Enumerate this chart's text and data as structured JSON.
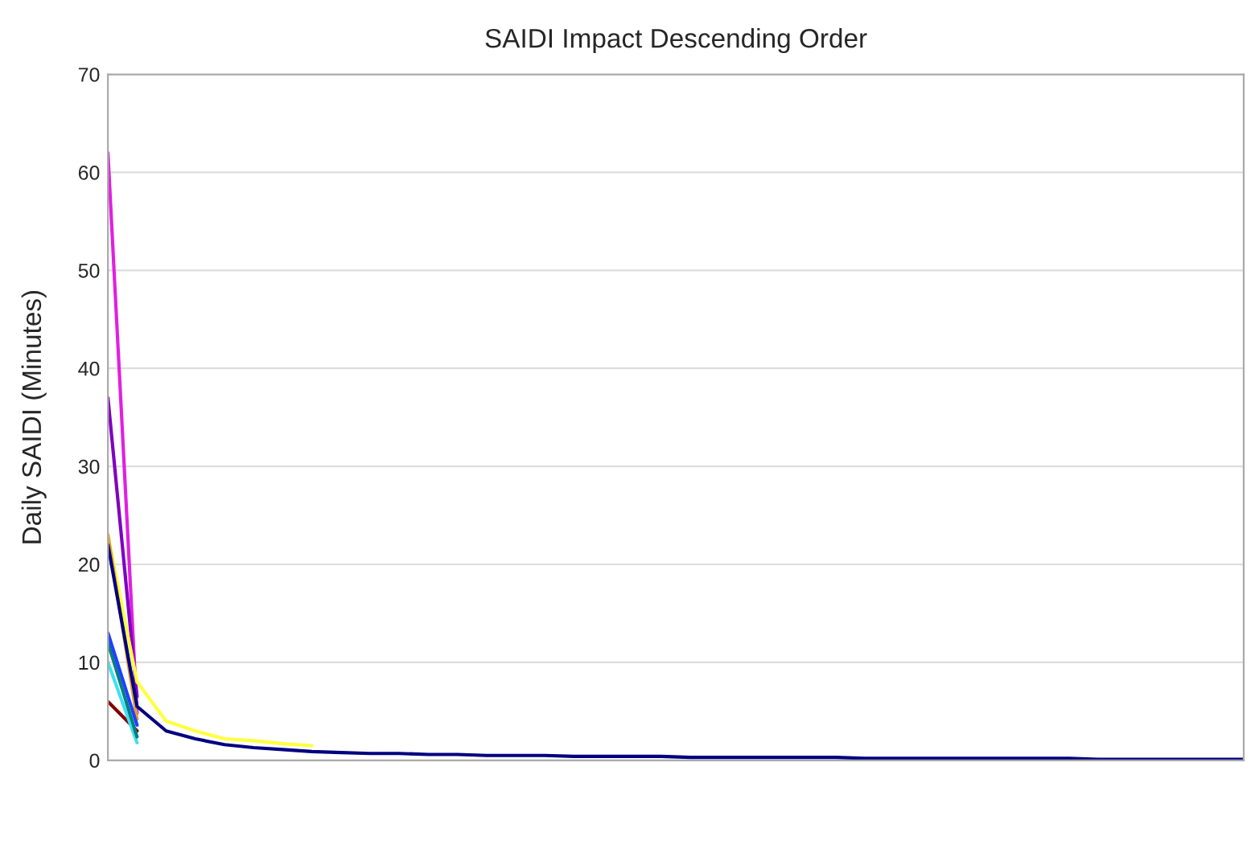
{
  "chart_data": {
    "type": "line",
    "title": "SAIDI Impact Descending Order",
    "ylabel": "Daily SAIDI (Minutes)",
    "ylim": [
      0,
      70
    ],
    "yticks": [
      0,
      10,
      20,
      30,
      40,
      50,
      60,
      70
    ],
    "tick_labels": "y",
    "grid": "y",
    "categories": [
      null,
      null,
      null,
      null,
      null,
      null,
      null,
      null,
      null,
      null,
      null,
      null,
      null,
      null,
      null,
      null,
      null,
      null,
      null,
      null,
      null,
      null,
      null,
      null,
      null,
      null,
      null,
      null,
      null,
      null,
      null,
      null,
      null,
      null,
      null,
      null,
      null,
      null,
      null,
      null
    ],
    "series": [
      {
        "color": "#e020e0",
        "values": [
          62,
          4.8,
          null,
          null,
          null,
          null,
          null,
          null,
          null,
          null,
          null,
          null,
          null,
          null,
          null,
          null,
          null,
          null,
          null,
          null,
          null,
          null,
          null,
          null,
          null,
          null,
          null,
          null,
          null,
          null,
          null,
          null,
          null,
          null,
          null,
          null,
          null,
          null,
          null,
          null
        ]
      },
      {
        "color": "#8000c0",
        "values": [
          37,
          6.5,
          null,
          null,
          null,
          null,
          null,
          null,
          null,
          null,
          null,
          null,
          null,
          null,
          null,
          null,
          null,
          null,
          null,
          null,
          null,
          null,
          null,
          null,
          null,
          null,
          null,
          null,
          null,
          null,
          null,
          null,
          null,
          null,
          null,
          null,
          null,
          null,
          null,
          null
        ]
      },
      {
        "color": "#ffff40",
        "values": [
          23,
          8,
          4,
          3,
          2.2,
          2,
          1.7,
          1.5,
          null,
          null,
          null,
          null,
          null,
          null,
          null,
          null,
          null,
          null,
          null,
          null,
          null,
          null,
          null,
          null,
          null,
          null,
          null,
          null,
          null,
          null,
          null,
          null,
          null,
          null,
          null,
          null,
          null,
          null,
          null,
          null
        ]
      },
      {
        "color": "#e0a030",
        "values": [
          23,
          4.2,
          null,
          null,
          null,
          null,
          null,
          null,
          null,
          null,
          null,
          null,
          null,
          null,
          null,
          null,
          null,
          null,
          null,
          null,
          null,
          null,
          null,
          null,
          null,
          null,
          null,
          null,
          null,
          null,
          null,
          null,
          null,
          null,
          null,
          null,
          null,
          null,
          null,
          null
        ]
      },
      {
        "color": "#800000",
        "values": [
          6,
          3,
          null,
          null,
          null,
          null,
          null,
          null,
          null,
          null,
          null,
          null,
          null,
          null,
          null,
          null,
          null,
          null,
          null,
          null,
          null,
          null,
          null,
          null,
          null,
          null,
          null,
          null,
          null,
          null,
          null,
          null,
          null,
          null,
          null,
          null,
          null,
          null,
          null,
          null
        ]
      },
      {
        "color": "#40e0f0",
        "values": [
          10,
          1.8,
          null,
          null,
          null,
          null,
          null,
          null,
          null,
          null,
          null,
          null,
          null,
          null,
          null,
          null,
          null,
          null,
          null,
          null,
          null,
          null,
          null,
          null,
          null,
          null,
          null,
          null,
          null,
          null,
          null,
          null,
          null,
          null,
          null,
          null,
          null,
          null,
          null,
          null
        ]
      },
      {
        "color": "#008080",
        "values": [
          12,
          2.4,
          null,
          null,
          null,
          null,
          null,
          null,
          null,
          null,
          null,
          null,
          null,
          null,
          null,
          null,
          null,
          null,
          null,
          null,
          null,
          null,
          null,
          null,
          null,
          null,
          null,
          null,
          null,
          null,
          null,
          null,
          null,
          null,
          null,
          null,
          null,
          null,
          null,
          null
        ]
      },
      {
        "color": "#2040ff",
        "values": [
          13,
          3.6,
          null,
          null,
          null,
          null,
          null,
          null,
          null,
          null,
          null,
          null,
          null,
          null,
          null,
          null,
          null,
          null,
          null,
          null,
          null,
          null,
          null,
          null,
          null,
          null,
          null,
          null,
          null,
          null,
          null,
          null,
          null,
          null,
          null,
          null,
          null,
          null,
          null,
          null
        ]
      },
      {
        "color": "#000080",
        "values": [
          22,
          5.5,
          3,
          2.2,
          1.6,
          1.3,
          1.1,
          0.9,
          0.8,
          0.7,
          0.7,
          0.6,
          0.6,
          0.5,
          0.5,
          0.5,
          0.4,
          0.4,
          0.4,
          0.4,
          0.3,
          0.3,
          0.3,
          0.3,
          0.3,
          0.3,
          0.2,
          0.2,
          0.2,
          0.2,
          0.2,
          0.2,
          0.2,
          0.2,
          0.1,
          0.1,
          0.1,
          0.1,
          0.1,
          0.1
        ]
      }
    ]
  }
}
